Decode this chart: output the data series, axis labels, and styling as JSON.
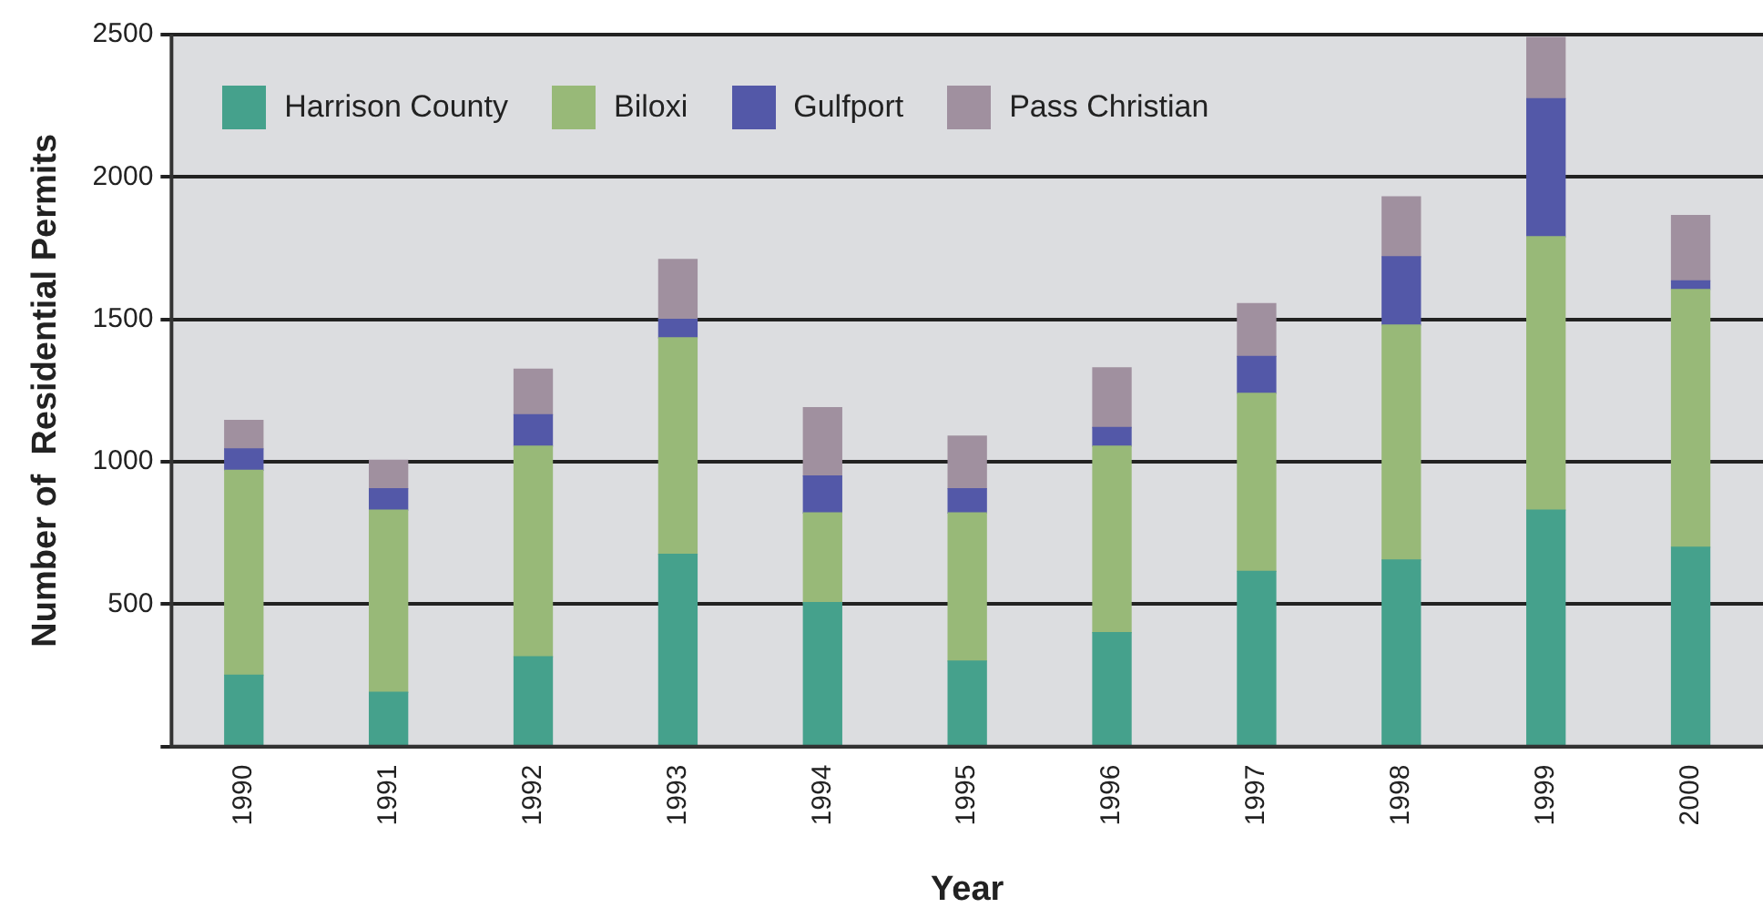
{
  "chart_data": {
    "type": "bar",
    "stacked": true,
    "xlabel": "Year",
    "ylabel": "Number of  Residential Permits",
    "categories": [
      "1990",
      "1991",
      "1992",
      "1993",
      "1994",
      "1995",
      "1996",
      "1997",
      "1998",
      "1999",
      "2000"
    ],
    "series": [
      {
        "name": "Harrison County",
        "color": "#45a18c",
        "values": [
          250,
          190,
          315,
          675,
          505,
          300,
          400,
          615,
          655,
          830,
          700
        ]
      },
      {
        "name": "Biloxi",
        "color": "#98b978",
        "values": [
          720,
          640,
          740,
          760,
          315,
          520,
          655,
          625,
          825,
          960,
          905
        ]
      },
      {
        "name": "Gulfport",
        "color": "#5358a8",
        "values": [
          75,
          75,
          110,
          65,
          130,
          85,
          65,
          130,
          240,
          485,
          30
        ]
      },
      {
        "name": "Pass Christian",
        "color": "#a0909f",
        "values": [
          100,
          100,
          160,
          210,
          240,
          185,
          210,
          185,
          210,
          215,
          230
        ]
      }
    ],
    "ylim": [
      0,
      2500
    ],
    "yticks": [
      {
        "value": 0,
        "label": null
      },
      500,
      1000,
      1500,
      2000,
      2500
    ],
    "grid": "y",
    "legend": "top left"
  }
}
